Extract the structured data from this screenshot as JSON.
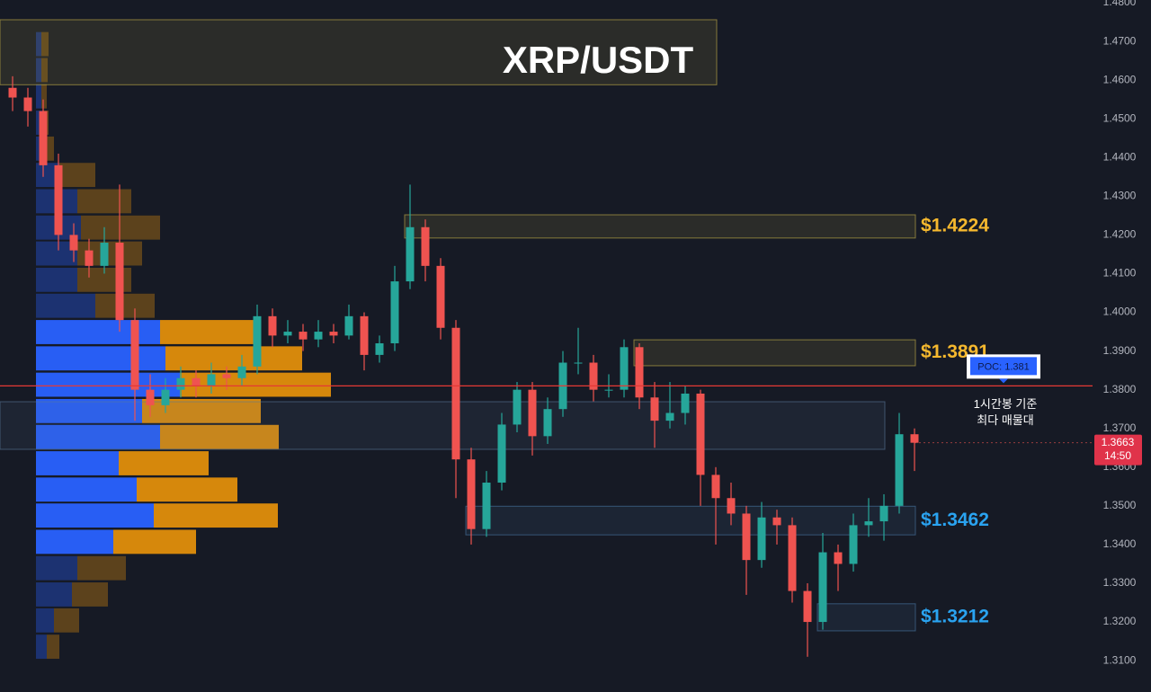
{
  "chart_data": {
    "type": "candlestick",
    "title": "XRP/USDT",
    "ylim": [
      1.3019,
      1.4807
    ],
    "yticks": [
      {
        "value": 1.48,
        "label": "1.4800"
      },
      {
        "value": 1.47,
        "label": "1.4700"
      },
      {
        "value": 1.46,
        "label": "1.4600"
      },
      {
        "value": 1.45,
        "label": "1.4500"
      },
      {
        "value": 1.44,
        "label": "1.4400"
      },
      {
        "value": 1.43,
        "label": "1.4300"
      },
      {
        "value": 1.42,
        "label": "1.4200"
      },
      {
        "value": 1.41,
        "label": "1.4100"
      },
      {
        "value": 1.4,
        "label": "1.4000"
      },
      {
        "value": 1.39,
        "label": "1.3900"
      },
      {
        "value": 1.38,
        "label": "1.3800"
      },
      {
        "value": 1.37,
        "label": "1.3700"
      },
      {
        "value": 1.36,
        "label": "1.3600"
      },
      {
        "value": 1.35,
        "label": "1.3500"
      },
      {
        "value": 1.34,
        "label": "1.3400"
      },
      {
        "value": 1.33,
        "label": "1.3300"
      },
      {
        "value": 1.32,
        "label": "1.3200"
      },
      {
        "value": 1.31,
        "label": "1.3100"
      }
    ],
    "grid": false,
    "up_color": "#26a69a",
    "down_color": "#ef5350",
    "open": [
      1.458,
      1.4555,
      1.452,
      1.438,
      1.42,
      1.416,
      1.412,
      1.418,
      1.398,
      1.38,
      1.376,
      1.38,
      1.383,
      1.381,
      1.384,
      1.383,
      1.386,
      1.399,
      1.394,
      1.395,
      1.393,
      1.395,
      1.394,
      1.399,
      1.389,
      1.392,
      1.408,
      1.422,
      1.412,
      1.396,
      1.362,
      1.344,
      1.356,
      1.371,
      1.38,
      1.368,
      1.375,
      1.387,
      1.387,
      1.38,
      1.38,
      1.391,
      1.378,
      1.372,
      1.374,
      1.379,
      1.358,
      1.352,
      1.348,
      1.336,
      1.347,
      1.345,
      1.328,
      1.32,
      1.338,
      1.335,
      1.345,
      1.346,
      1.35,
      1.3685
    ],
    "high": [
      1.461,
      1.458,
      1.455,
      1.441,
      1.423,
      1.419,
      1.422,
      1.433,
      1.401,
      1.384,
      1.383,
      1.386,
      1.385,
      1.387,
      1.386,
      1.389,
      1.402,
      1.401,
      1.398,
      1.397,
      1.398,
      1.397,
      1.402,
      1.4,
      1.394,
      1.412,
      1.433,
      1.424,
      1.414,
      1.398,
      1.365,
      1.359,
      1.374,
      1.382,
      1.382,
      1.378,
      1.39,
      1.396,
      1.389,
      1.384,
      1.393,
      1.392,
      1.382,
      1.382,
      1.381,
      1.38,
      1.36,
      1.356,
      1.35,
      1.351,
      1.349,
      1.347,
      1.33,
      1.343,
      1.34,
      1.348,
      1.352,
      1.353,
      1.374,
      1.37
    ],
    "low": [
      1.452,
      1.448,
      1.435,
      1.416,
      1.413,
      1.409,
      1.41,
      1.395,
      1.372,
      1.373,
      1.374,
      1.378,
      1.378,
      1.379,
      1.38,
      1.381,
      1.384,
      1.391,
      1.392,
      1.39,
      1.391,
      1.392,
      1.393,
      1.385,
      1.387,
      1.39,
      1.406,
      1.408,
      1.393,
      1.352,
      1.34,
      1.342,
      1.354,
      1.369,
      1.363,
      1.366,
      1.373,
      1.384,
      1.377,
      1.378,
      1.378,
      1.375,
      1.365,
      1.37,
      1.371,
      1.35,
      1.34,
      1.345,
      1.327,
      1.334,
      1.34,
      1.325,
      1.311,
      1.318,
      1.328,
      1.333,
      1.342,
      1.341,
      1.348,
      1.359
    ],
    "close": [
      1.4555,
      1.452,
      1.438,
      1.42,
      1.416,
      1.412,
      1.418,
      1.398,
      1.38,
      1.376,
      1.38,
      1.383,
      1.381,
      1.384,
      1.383,
      1.386,
      1.399,
      1.394,
      1.395,
      1.393,
      1.395,
      1.394,
      1.399,
      1.389,
      1.392,
      1.408,
      1.422,
      1.412,
      1.396,
      1.362,
      1.344,
      1.356,
      1.371,
      1.38,
      1.368,
      1.375,
      1.387,
      1.387,
      1.38,
      1.38,
      1.391,
      1.378,
      1.372,
      1.374,
      1.379,
      1.358,
      1.352,
      1.348,
      1.336,
      1.347,
      1.345,
      1.328,
      1.32,
      1.338,
      1.335,
      1.345,
      1.346,
      1.35,
      1.3685,
      1.3663
    ],
    "volume_profile": {
      "xlim": [
        0,
        400
      ],
      "buy_color": "#2962ff",
      "sell_color": "#e08e0b",
      "value_area": [
        1.3407,
        1.3949
      ],
      "levels": [
        1.4693,
        1.4626,
        1.4558,
        1.449,
        1.4423,
        1.4355,
        1.4287,
        1.4219,
        1.4152,
        1.4084,
        1.4017,
        1.3949,
        1.3881,
        1.3813,
        1.3745,
        1.3678,
        1.361,
        1.3542,
        1.3475,
        1.3407,
        1.3339,
        1.3271,
        1.3204,
        1.3136
      ],
      "buy": [
        6,
        6,
        6,
        8,
        12,
        26,
        46,
        50,
        46,
        46,
        66,
        138,
        144,
        160,
        118,
        138,
        92,
        112,
        131,
        86,
        46,
        40,
        20,
        12
      ],
      "sell": [
        8,
        7,
        6,
        6,
        8,
        40,
        60,
        88,
        72,
        60,
        66,
        104,
        152,
        168,
        132,
        132,
        100,
        112,
        138,
        92,
        54,
        40,
        28,
        14
      ]
    },
    "zones": [
      {
        "low": 1.4588,
        "high": 1.4756,
        "from": 0,
        "to": 46,
        "color": "#c9b44a"
      },
      {
        "low": 1.3646,
        "high": 1.3769,
        "from": 0,
        "to": 57,
        "color": "#5a7a9a"
      },
      {
        "low": 1.4192,
        "high": 1.4252,
        "from": 26,
        "to": 59,
        "color": "#c9b44a",
        "label": "$1.4224"
      },
      {
        "low": 1.3862,
        "high": 1.3929,
        "from": 41,
        "to": 59,
        "color": "#c9b44a",
        "label": "$1.3891"
      },
      {
        "low": 1.3425,
        "high": 1.3499,
        "from": 30,
        "to": 59,
        "color": "#4a7aa8",
        "label": "$1.3462"
      },
      {
        "low": 1.3177,
        "high": 1.3247,
        "from": 53,
        "to": 59,
        "color": "#4a7aa8",
        "label": "$1.3212"
      }
    ],
    "poc": {
      "value": 1.381,
      "label": "POC: 1.381",
      "note": [
        "1시간봉 기준",
        "최다 매물대"
      ],
      "color": "#e53935"
    },
    "last_price": {
      "value": 1.3663,
      "label": "1.3663",
      "time": "14:50"
    }
  }
}
